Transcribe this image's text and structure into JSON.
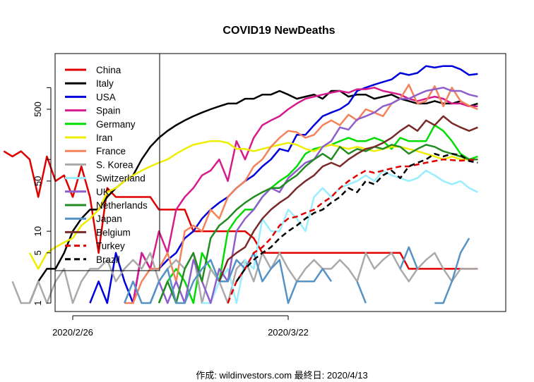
{
  "chart_data": {
    "type": "line",
    "title": "COVID19 NewDeaths",
    "caption": "作成: wildinvestors.com 最終日: 2020/4/13",
    "y_scale": "log",
    "ylim": [
      1,
      2000
    ],
    "y_ticks": [
      1,
      5,
      10,
      50,
      500
    ],
    "x_ticks": [
      "2020/2/26",
      "2020/3/22"
    ],
    "x_dates": [
      "2020/2/18",
      "2020/2/19",
      "2020/2/20",
      "2020/2/21",
      "2020/2/22",
      "2020/2/23",
      "2020/2/24",
      "2020/2/25",
      "2020/2/26",
      "2020/2/27",
      "2020/2/28",
      "2020/2/29",
      "2020/3/1",
      "2020/3/2",
      "2020/3/3",
      "2020/3/4",
      "2020/3/5",
      "2020/3/6",
      "2020/3/7",
      "2020/3/8",
      "2020/3/9",
      "2020/3/10",
      "2020/3/11",
      "2020/3/12",
      "2020/3/13",
      "2020/3/14",
      "2020/3/15",
      "2020/3/16",
      "2020/3/17",
      "2020/3/18",
      "2020/3/19",
      "2020/3/20",
      "2020/3/21",
      "2020/3/22",
      "2020/3/23",
      "2020/3/24",
      "2020/3/25",
      "2020/3/26",
      "2020/3/27",
      "2020/3/28",
      "2020/3/29",
      "2020/3/30",
      "2020/3/31",
      "2020/4/1",
      "2020/4/2",
      "2020/4/3",
      "2020/4/4",
      "2020/4/5",
      "2020/4/6",
      "2020/4/7",
      "2020/4/8",
      "2020/4/9",
      "2020/4/10",
      "2020/4/11",
      "2020/4/12",
      "2020/4/13"
    ],
    "legend_position": "top-left",
    "series": [
      {
        "name": "China",
        "color": "#e00000",
        "dash": false,
        "values": [
          130,
          110,
          130,
          100,
          30,
          110,
          50,
          60,
          30,
          80,
          30,
          5,
          40,
          30,
          30,
          30,
          30,
          30,
          20,
          20,
          20,
          20,
          10,
          10,
          10,
          10,
          10,
          10,
          10,
          8,
          5,
          5,
          5,
          5,
          5,
          5,
          5,
          5,
          5,
          5,
          5,
          5,
          5,
          5,
          5,
          5,
          5,
          3,
          3,
          3,
          3,
          3,
          3,
          3,
          3,
          3
        ]
      },
      {
        "name": "Italy",
        "color": "#000000",
        "dash": false,
        "values": [
          null,
          null,
          null,
          1,
          2,
          3,
          3,
          5,
          10,
          15,
          20,
          20,
          30,
          40,
          50,
          60,
          100,
          150,
          200,
          250,
          300,
          350,
          400,
          450,
          500,
          550,
          600,
          600,
          700,
          700,
          800,
          800,
          900,
          800,
          700,
          750,
          800,
          700,
          900,
          900,
          750,
          800,
          800,
          700,
          750,
          800,
          700,
          650,
          600,
          600,
          650,
          600,
          600,
          650,
          550,
          600
        ]
      },
      {
        "name": "USA",
        "color": "#0000dd",
        "dash": false,
        "values": [
          null,
          null,
          null,
          null,
          null,
          null,
          null,
          null,
          null,
          null,
          1,
          2,
          1,
          5,
          2,
          1,
          5,
          3,
          3,
          4,
          5,
          8,
          10,
          15,
          20,
          25,
          30,
          40,
          50,
          60,
          80,
          100,
          140,
          130,
          220,
          220,
          300,
          400,
          450,
          500,
          600,
          900,
          1000,
          1100,
          1200,
          1300,
          1600,
          1500,
          1600,
          2000,
          1900,
          2000,
          2000,
          1800,
          1500,
          1550
        ]
      },
      {
        "name": "Spain",
        "color": "#d81b8c",
        "dash": false,
        "values": [
          null,
          null,
          null,
          null,
          null,
          null,
          null,
          null,
          null,
          null,
          null,
          null,
          null,
          null,
          null,
          1,
          5,
          3,
          10,
          5,
          20,
          30,
          40,
          60,
          70,
          100,
          50,
          180,
          100,
          200,
          300,
          350,
          400,
          500,
          600,
          700,
          750,
          800,
          850,
          900,
          850,
          950,
          950,
          1000,
          900,
          850,
          800,
          700,
          650,
          700,
          750,
          700,
          600,
          600,
          550,
          550
        ]
      },
      {
        "name": "Germany",
        "color": "#00dd00",
        "dash": false,
        "values": [
          null,
          null,
          null,
          null,
          null,
          null,
          null,
          null,
          null,
          null,
          null,
          null,
          null,
          null,
          null,
          null,
          null,
          null,
          1,
          2,
          3,
          2,
          1,
          5,
          3,
          2,
          10,
          15,
          20,
          20,
          30,
          40,
          50,
          60,
          80,
          120,
          140,
          150,
          160,
          180,
          200,
          180,
          180,
          200,
          180,
          140,
          200,
          180,
          180,
          180,
          300,
          250,
          180,
          120,
          100,
          110
        ]
      },
      {
        "name": "Iran",
        "color": "#eeee00",
        "dash": false,
        "values": [
          null,
          null,
          null,
          5,
          3,
          5,
          6,
          7,
          8,
          12,
          15,
          20,
          35,
          40,
          50,
          60,
          70,
          80,
          90,
          100,
          120,
          140,
          160,
          170,
          180,
          180,
          170,
          140,
          140,
          130,
          140,
          150,
          160,
          170,
          160,
          140,
          130,
          150,
          160,
          150,
          140,
          150,
          140,
          130,
          140,
          150,
          150,
          140,
          130,
          120,
          110,
          100,
          110,
          100,
          100,
          100
        ]
      },
      {
        "name": "France",
        "color": "#f4825a",
        "dash": false,
        "values": [
          null,
          null,
          null,
          null,
          null,
          null,
          null,
          null,
          null,
          null,
          null,
          null,
          null,
          null,
          1,
          1,
          2,
          3,
          3,
          5,
          2,
          10,
          12,
          10,
          20,
          15,
          30,
          40,
          50,
          80,
          100,
          150,
          200,
          250,
          240,
          200,
          220,
          300,
          350,
          300,
          420,
          350,
          500,
          450,
          400,
          600,
          700,
          1100,
          600,
          650,
          1050,
          550,
          1000,
          650,
          560,
          500
        ]
      },
      {
        "name": "S. Korea",
        "color": "#aaaaaa",
        "dash": false,
        "values": [
          null,
          2,
          1,
          1,
          2,
          1,
          2,
          3,
          1,
          2,
          3,
          3,
          4,
          2,
          3,
          4,
          3,
          5,
          2,
          3,
          4,
          3,
          5,
          1,
          3,
          2,
          1,
          3,
          4,
          2,
          5,
          3,
          5,
          3,
          2,
          3,
          4,
          3,
          3,
          4,
          3,
          2,
          5,
          3,
          4,
          5,
          3,
          2,
          3,
          4,
          5,
          3,
          2,
          3,
          3,
          3
        ]
      },
      {
        "name": "Switzerland",
        "color": "#99eeff",
        "dash": false,
        "values": [
          null,
          null,
          null,
          null,
          null,
          null,
          null,
          null,
          null,
          null,
          null,
          null,
          null,
          null,
          null,
          null,
          null,
          null,
          null,
          null,
          null,
          null,
          null,
          1,
          1,
          2,
          3,
          1,
          4,
          3,
          15,
          10,
          10,
          20,
          15,
          10,
          30,
          40,
          30,
          40,
          45,
          50,
          60,
          50,
          70,
          60,
          55,
          50,
          55,
          70,
          60,
          50,
          45,
          50,
          40,
          35
        ]
      },
      {
        "name": "UK",
        "color": "#8e5fcc",
        "dash": false,
        "values": [
          null,
          null,
          null,
          null,
          null,
          null,
          null,
          null,
          null,
          null,
          null,
          null,
          null,
          null,
          null,
          null,
          null,
          1,
          2,
          1,
          2,
          1,
          4,
          2,
          1,
          3,
          2,
          10,
          15,
          20,
          30,
          40,
          35,
          55,
          70,
          90,
          100,
          150,
          180,
          280,
          260,
          360,
          400,
          450,
          550,
          600,
          700,
          700,
          800,
          900,
          950,
          1000,
          900,
          900,
          800,
          750
        ]
      },
      {
        "name": "Netherlands",
        "color": "#228b22",
        "dash": false,
        "values": [
          null,
          null,
          null,
          null,
          null,
          null,
          null,
          null,
          null,
          null,
          null,
          null,
          null,
          null,
          null,
          null,
          null,
          null,
          1,
          2,
          1,
          3,
          5,
          2,
          8,
          12,
          15,
          20,
          25,
          30,
          35,
          40,
          40,
          50,
          60,
          80,
          100,
          120,
          100,
          150,
          120,
          140,
          130,
          150,
          140,
          160,
          150,
          120,
          140,
          160,
          150,
          130,
          120,
          110,
          100,
          100
        ]
      },
      {
        "name": "Japan",
        "color": "#5592c6",
        "dash": false,
        "values": [
          null,
          null,
          null,
          null,
          null,
          null,
          null,
          null,
          null,
          null,
          null,
          null,
          null,
          null,
          1,
          2,
          1,
          1,
          2,
          3,
          1,
          1,
          2,
          3,
          4,
          2,
          2,
          4,
          3,
          5,
          2,
          3,
          4,
          1,
          2,
          2,
          2,
          3,
          2,
          null,
          null,
          2,
          1,
          null,
          2,
          null,
          3,
          6,
          3,
          null,
          1,
          1,
          2,
          5,
          8,
          null
        ]
      },
      {
        "name": "Belgium",
        "color": "#7b2a2a",
        "dash": false,
        "values": [
          null,
          null,
          null,
          null,
          null,
          null,
          null,
          null,
          null,
          null,
          null,
          null,
          null,
          null,
          null,
          null,
          null,
          null,
          null,
          null,
          null,
          null,
          null,
          null,
          null,
          2,
          4,
          5,
          6,
          10,
          15,
          20,
          25,
          30,
          40,
          50,
          60,
          80,
          90,
          80,
          100,
          120,
          140,
          150,
          170,
          200,
          250,
          300,
          250,
          350,
          300,
          400,
          320,
          280,
          250,
          280
        ]
      },
      {
        "name": "Turkey",
        "color": "#e00000",
        "dash": true,
        "values": [
          null,
          null,
          null,
          null,
          null,
          null,
          null,
          null,
          null,
          null,
          null,
          null,
          null,
          null,
          null,
          null,
          null,
          null,
          null,
          null,
          null,
          null,
          null,
          null,
          null,
          null,
          1,
          2,
          3,
          5,
          6,
          8,
          12,
          15,
          16,
          18,
          20,
          25,
          30,
          40,
          50,
          60,
          70,
          65,
          70,
          75,
          80,
          80,
          85,
          90,
          95,
          100,
          98,
          96,
          98,
          100
        ]
      },
      {
        "name": "Brazil",
        "color": "#000000",
        "dash": true,
        "values": [
          null,
          null,
          null,
          null,
          null,
          null,
          null,
          null,
          null,
          null,
          null,
          null,
          null,
          null,
          null,
          null,
          null,
          null,
          null,
          null,
          null,
          null,
          null,
          null,
          null,
          null,
          null,
          2,
          3,
          4,
          5,
          6,
          8,
          10,
          12,
          15,
          18,
          20,
          25,
          30,
          40,
          35,
          50,
          45,
          60,
          70,
          55,
          80,
          90,
          100,
          120,
          110,
          120,
          115,
          95,
          90
        ]
      }
    ]
  }
}
